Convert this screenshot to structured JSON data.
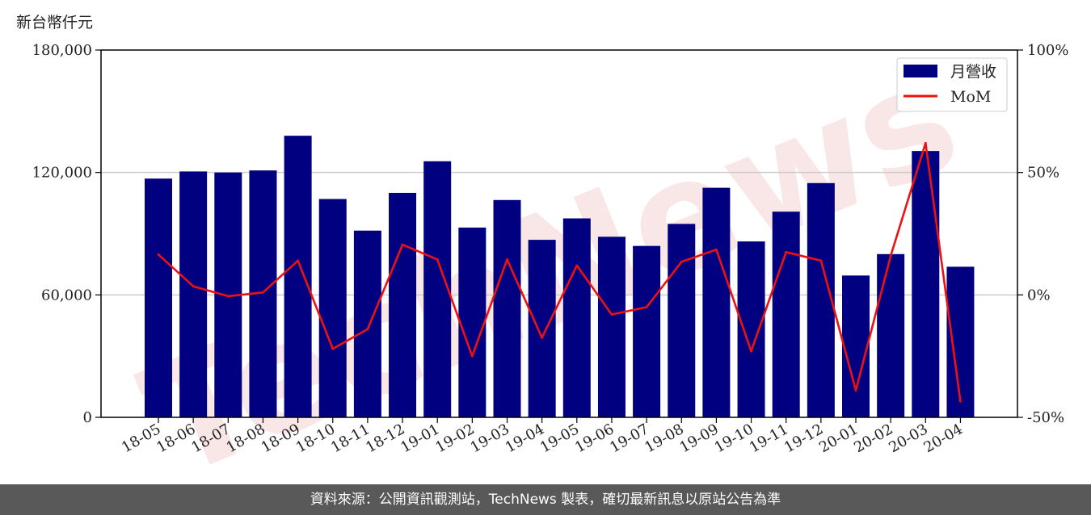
{
  "chart_data": {
    "type": "bar",
    "unit_label": "新台幣仟元",
    "categories": [
      "18-05",
      "18-06",
      "18-07",
      "18-08",
      "18-09",
      "18-10",
      "18-11",
      "18-12",
      "19-01",
      "19-02",
      "19-03",
      "19-04",
      "19-05",
      "19-06",
      "19-07",
      "19-08",
      "19-09",
      "19-10",
      "19-11",
      "19-12",
      "20-01",
      "20-02",
      "20-03",
      "20-04"
    ],
    "series": [
      {
        "name": "月營收",
        "type": "bar",
        "axis": "left",
        "color": "#000080",
        "values": [
          117000,
          120500,
          120000,
          121000,
          138000,
          107000,
          91500,
          110000,
          125500,
          93000,
          106500,
          87000,
          97500,
          88500,
          84000,
          94800,
          112500,
          86200,
          100800,
          114800,
          69500,
          80000,
          130500,
          73800
        ]
      },
      {
        "name": "MoM",
        "type": "line",
        "axis": "right",
        "color": "#ee1111",
        "unit": "%",
        "values": [
          16.5,
          3.5,
          -0.5,
          1.0,
          14.0,
          -22.0,
          -14.0,
          20.5,
          14.5,
          -25.0,
          14.5,
          -17.5,
          12.0,
          -8.0,
          -5.0,
          13.5,
          18.5,
          -23.0,
          17.5,
          14.0,
          -39.0,
          16.0,
          62.0,
          -43.5
        ]
      }
    ],
    "y_left": {
      "ylim": [
        0,
        180000
      ],
      "ticks": [
        "0",
        "60,000",
        "120,000",
        "180,000"
      ]
    },
    "y_right": {
      "ylim": [
        -50,
        100
      ],
      "ticks": [
        "-50%",
        "0%",
        "50%",
        "100%"
      ]
    },
    "grid": "horizontal",
    "legend_position": "top-right"
  },
  "watermark": "TechNews",
  "footer": {
    "text": "資料來源：公開資訊觀測站，TechNews 製表，確切最新訊息以原站公告為準"
  }
}
